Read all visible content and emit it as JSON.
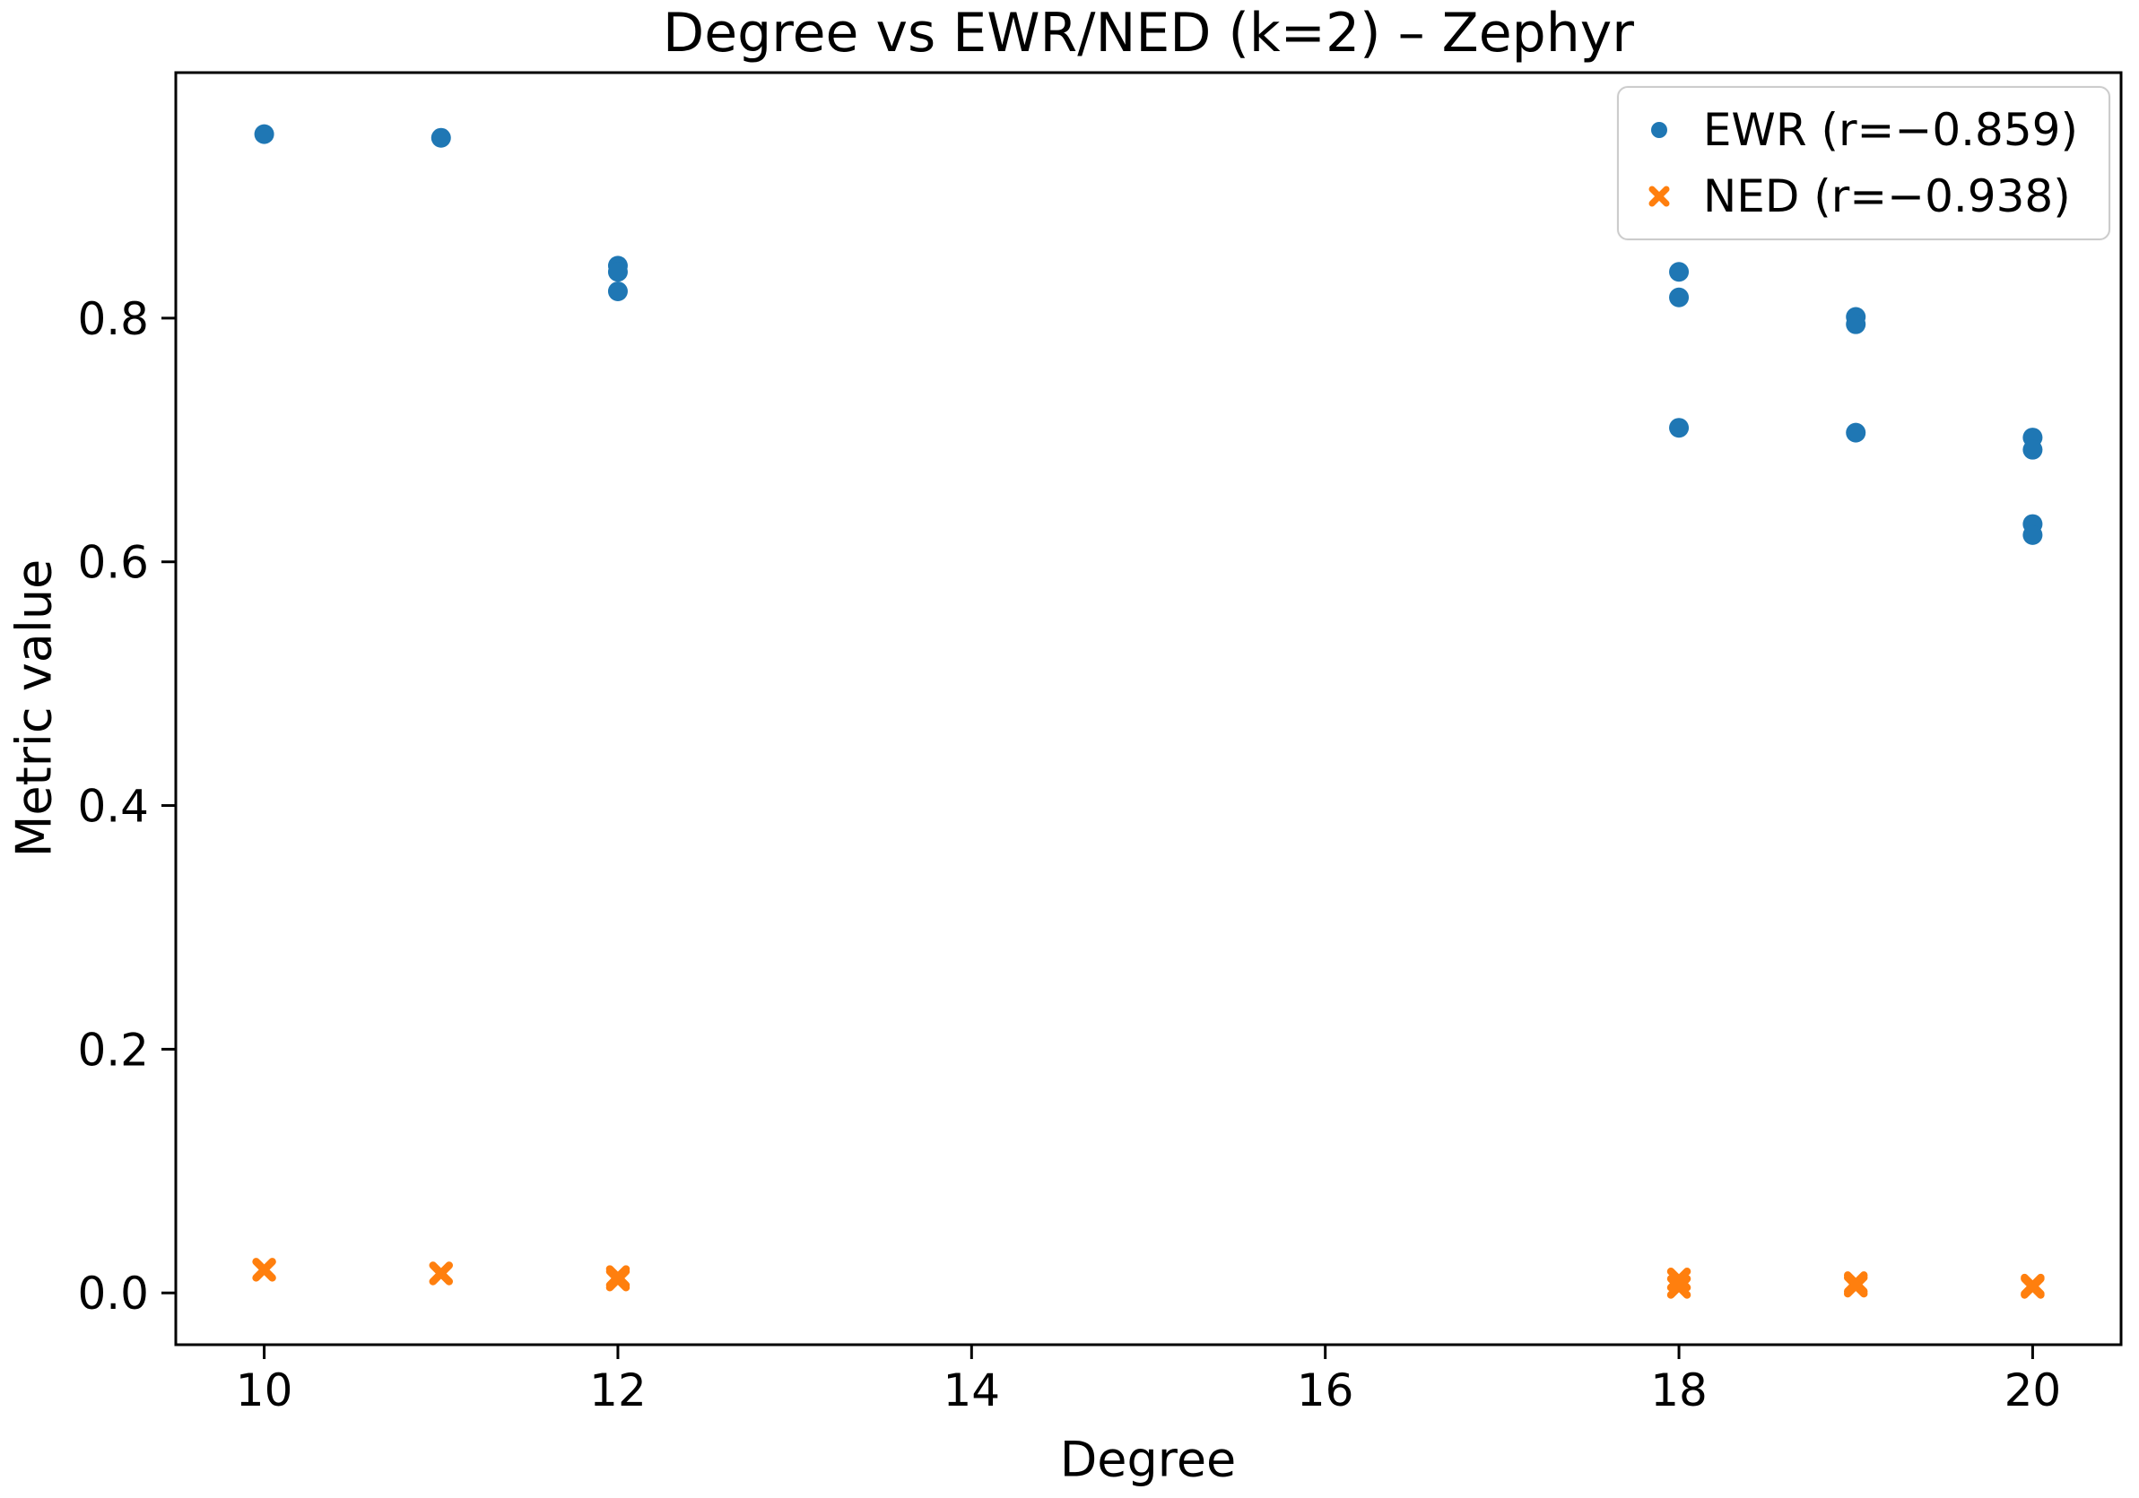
{
  "figure": {
    "background": "#ffffff"
  },
  "chart_data": {
    "type": "scatter",
    "title": "Degree vs EWR/NED (k=2) – Zephyr",
    "xlabel": "Degree",
    "ylabel": "Metric value",
    "xlim": [
      9.5,
      20.5
    ],
    "ylim": [
      -0.0425,
      1.0015
    ],
    "grid": false,
    "xticks": {
      "values": [
        10,
        12,
        14,
        16,
        18,
        20
      ],
      "labels": [
        "10",
        "12",
        "14",
        "16",
        "18",
        "20"
      ]
    },
    "yticks": {
      "values": [
        0.0,
        0.2,
        0.4,
        0.6,
        0.8
      ],
      "labels": [
        "0.0",
        "0.2",
        "0.4",
        "0.6",
        "0.8"
      ]
    },
    "legend": {
      "location": "upper right"
    },
    "series": [
      {
        "name": "EWR (r=−0.859)",
        "marker": "circle",
        "color": "#1f77b4",
        "points": [
          [
            10,
            0.951
          ],
          [
            11,
            0.948
          ],
          [
            12,
            0.843
          ],
          [
            12,
            0.838
          ],
          [
            12,
            0.822
          ],
          [
            18,
            0.838
          ],
          [
            18,
            0.817
          ],
          [
            18,
            0.71
          ],
          [
            19,
            0.801
          ],
          [
            19,
            0.795
          ],
          [
            19,
            0.706
          ],
          [
            20,
            0.702
          ],
          [
            20,
            0.692
          ],
          [
            20,
            0.631
          ],
          [
            20,
            0.622
          ]
        ]
      },
      {
        "name": "NED (r=−0.938)",
        "marker": "X",
        "color": "#ff7f0e",
        "points": [
          [
            10,
            0.019
          ],
          [
            11,
            0.016
          ],
          [
            12,
            0.013
          ],
          [
            12,
            0.011
          ],
          [
            18,
            0.011
          ],
          [
            18,
            0.005
          ],
          [
            19,
            0.008
          ],
          [
            19,
            0.006
          ],
          [
            20,
            0.006
          ],
          [
            20,
            0.005
          ]
        ]
      }
    ]
  }
}
